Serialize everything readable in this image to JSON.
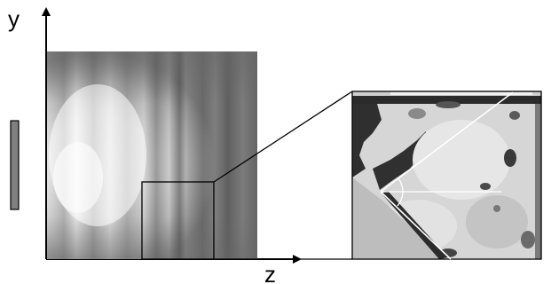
{
  "axes": {
    "vertical_label": "y",
    "horizontal_label": "z"
  },
  "colors": {
    "axis": "#000000",
    "scale_bar": "#808080",
    "annotation_line": "#ffffff"
  }
}
